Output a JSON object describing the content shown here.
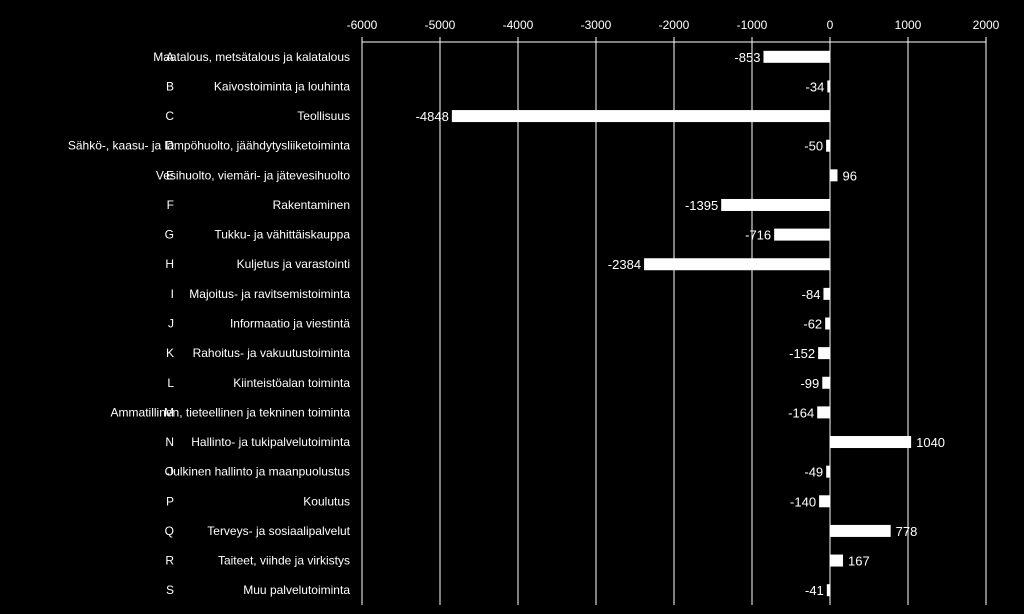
{
  "chart_data": {
    "type": "bar",
    "orientation": "horizontal",
    "categories": [
      {
        "code": "A",
        "name": "Maatalous, metsätalous ja kalatalous"
      },
      {
        "code": "B",
        "name": "Kaivostoiminta ja louhinta"
      },
      {
        "code": "C",
        "name": "Teollisuus"
      },
      {
        "code": "D",
        "name": "Sähkö-, kaasu- ja lämpöhuolto, jäähdytysliiketoiminta"
      },
      {
        "code": "E",
        "name": "Vesihuolto, viemäri- ja jätevesihuolto"
      },
      {
        "code": "F",
        "name": "Rakentaminen"
      },
      {
        "code": "G",
        "name": "Tukku- ja vähittäiskauppa"
      },
      {
        "code": "H",
        "name": "Kuljetus ja varastointi"
      },
      {
        "code": "I",
        "name": "Majoitus- ja ravitsemistoiminta"
      },
      {
        "code": "J",
        "name": "Informaatio ja viestintä"
      },
      {
        "code": "K",
        "name": "Rahoitus- ja vakuutustoiminta"
      },
      {
        "code": "L",
        "name": "Kiinteistöalan toiminta"
      },
      {
        "code": "M",
        "name": "Ammatillinen, tieteellinen ja tekninen toiminta"
      },
      {
        "code": "N",
        "name": "Hallinto- ja tukipalvelutoiminta"
      },
      {
        "code": "O",
        "name": "Julkinen hallinto ja maanpuolustus"
      },
      {
        "code": "P",
        "name": "Koulutus"
      },
      {
        "code": "Q",
        "name": "Terveys- ja sosiaalipalvelut"
      },
      {
        "code": "R",
        "name": "Taiteet, viihde ja virkistys"
      },
      {
        "code": "S",
        "name": "Muu palvelutoiminta"
      }
    ],
    "values": [
      -853,
      -34,
      -4848,
      -50,
      96,
      -1395,
      -716,
      -2384,
      -84,
      -62,
      -152,
      -99,
      -164,
      1040,
      -49,
      -140,
      778,
      167,
      -41
    ],
    "xlim": [
      -6000,
      2000
    ],
    "xticks": [
      -6000,
      -5000,
      -4000,
      -3000,
      -2000,
      -1000,
      0,
      1000,
      2000
    ],
    "axis_position": "top",
    "grid": true,
    "colors": {
      "background": "#000000",
      "bar": "#ffffff",
      "text": "#ffffff",
      "grid": "#ffffff"
    }
  }
}
